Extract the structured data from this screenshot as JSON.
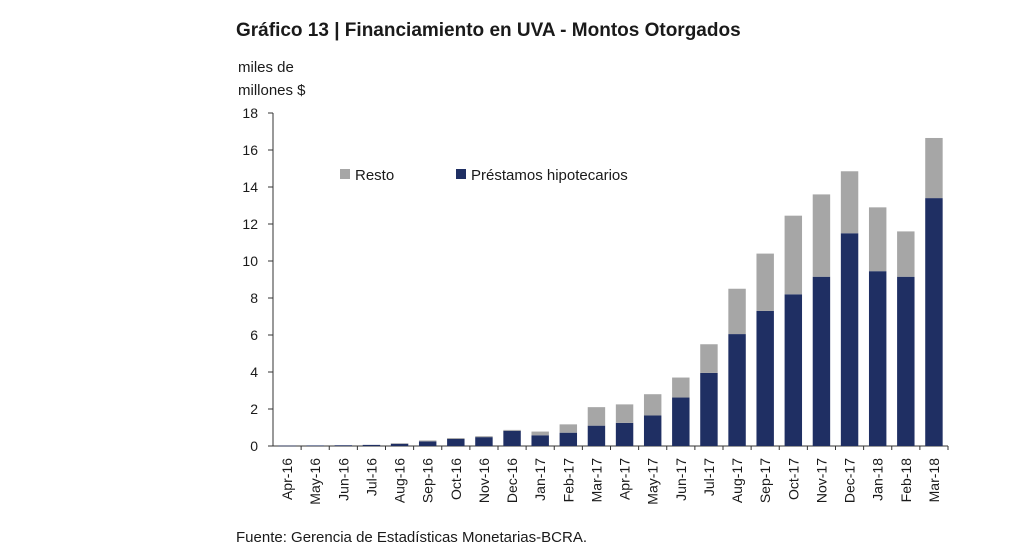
{
  "chart_data": {
    "type": "bar",
    "stacked": true,
    "title": "Gráfico 13 | Financiamiento en UVA - Montos Otorgados",
    "ylabel_lines": [
      "miles de",
      "millones $"
    ],
    "source": "Fuente: Gerencia de Estadísticas Monetarias-BCRA.",
    "ylim": [
      0,
      18
    ],
    "yticks": [
      "0",
      "2",
      "4",
      "6",
      "8",
      "10",
      "12",
      "14",
      "16",
      "18"
    ],
    "legend_position": "top-left",
    "categories": [
      "Apr-16",
      "May-16",
      "Jun-16",
      "Jul-16",
      "Aug-16",
      "Sep-16",
      "Oct-16",
      "Nov-16",
      "Dec-16",
      "Jan-17",
      "Feb-17",
      "Mar-17",
      "Apr-17",
      "May-17",
      "Jun-17",
      "Jul-17",
      "Aug-17",
      "Sep-17",
      "Oct-17",
      "Nov-17",
      "Dec-17",
      "Jan-18",
      "Feb-18",
      "Mar-18"
    ],
    "series": [
      {
        "name": "Préstamos hipotecarios",
        "color": "#1f2f63",
        "values": [
          0.02,
          0.03,
          0.04,
          0.06,
          0.12,
          0.25,
          0.38,
          0.48,
          0.82,
          0.58,
          0.72,
          1.1,
          1.25,
          1.65,
          2.62,
          3.95,
          6.05,
          7.3,
          8.2,
          9.15,
          11.5,
          9.45,
          9.15,
          13.4
        ]
      },
      {
        "name": "Resto",
        "color": "#a6a6a6",
        "values": [
          0.0,
          0.0,
          0.0,
          0.0,
          0.03,
          0.05,
          0.05,
          0.05,
          0.05,
          0.2,
          0.45,
          1.0,
          1.0,
          1.15,
          1.08,
          1.55,
          2.45,
          3.1,
          4.25,
          4.45,
          3.35,
          3.45,
          2.45,
          3.25
        ]
      }
    ]
  }
}
